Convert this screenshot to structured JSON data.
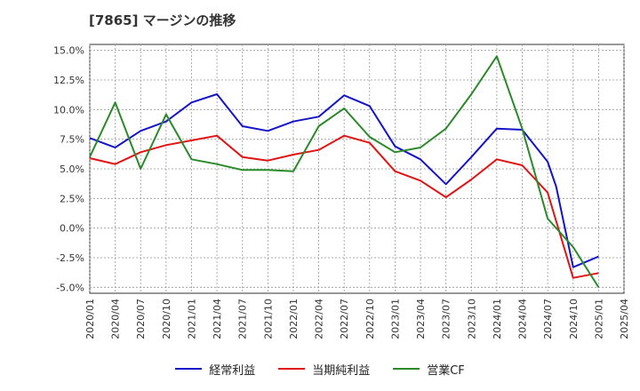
{
  "chart_data": {
    "type": "line",
    "title": "[7865]  マージンの推移",
    "x": [
      "2020/01",
      "2020/04",
      "2020/07",
      "2020/10",
      "2021/01",
      "2021/04",
      "2021/07",
      "2021/10",
      "2022/01",
      "2022/04",
      "2022/07",
      "2022/10",
      "2023/01",
      "2023/04",
      "2023/07",
      "2023/10",
      "2024/01",
      "2024/04",
      "2024/07",
      "2024/10",
      "2025/01",
      "2025/04"
    ],
    "y_ticks": [
      "15.0%",
      "12.5%",
      "10.0%",
      "7.5%",
      "5.0%",
      "2.5%",
      "0.0%",
      "-2.5%",
      "-5.0%"
    ],
    "ylim": [
      -5.5,
      15.5
    ],
    "grid": true,
    "legend_position": "bottom",
    "series": [
      {
        "name": "経常利益",
        "color": "#1414c8",
        "x": [
          "2020/01",
          "2020/04",
          "2020/07",
          "2020/10",
          "2021/01",
          "2021/04",
          "2021/07",
          "2021/10",
          "2022/01",
          "2022/04",
          "2022/07",
          "2022/10",
          "2023/01",
          "2023/04",
          "2023/07",
          "2023/10",
          "2024/01",
          "2024/04",
          "2024/07",
          "2024/10",
          "2025/01"
        ],
        "values": [
          7.6,
          6.8,
          8.2,
          9.0,
          10.6,
          11.3,
          8.6,
          8.2,
          9.0,
          9.4,
          11.2,
          10.3,
          6.9,
          5.8,
          3.7,
          6.0,
          8.4,
          8.3,
          5.6,
          -3.3,
          -2.4
        ],
        "extra_points": [
          {
            "x": "2024/08",
            "value": 3.5
          }
        ]
      },
      {
        "name": "当期純利益",
        "color": "#e01414",
        "x": [
          "2020/01",
          "2020/04",
          "2020/07",
          "2020/10",
          "2021/01",
          "2021/04",
          "2021/07",
          "2021/10",
          "2022/01",
          "2022/04",
          "2022/07",
          "2022/10",
          "2023/01",
          "2023/04",
          "2023/07",
          "2023/10",
          "2024/01",
          "2024/04",
          "2024/07",
          "2024/10",
          "2025/01"
        ],
        "values": [
          5.9,
          5.4,
          6.4,
          7.0,
          7.4,
          7.8,
          6.0,
          5.7,
          6.2,
          6.6,
          7.8,
          7.2,
          4.8,
          4.0,
          2.6,
          4.1,
          5.8,
          5.3,
          3.0,
          -4.2,
          -3.8
        ]
      },
      {
        "name": "営業CF",
        "color": "#2a8a2a",
        "x": [
          "2020/01",
          "2020/04",
          "2020/07",
          "2020/10",
          "2021/01",
          "2021/04",
          "2021/07",
          "2021/10",
          "2022/01",
          "2022/04",
          "2022/07",
          "2022/10",
          "2023/01",
          "2023/04",
          "2023/07",
          "2023/10",
          "2024/01",
          "2024/04",
          "2024/07",
          "2024/10",
          "2025/01"
        ],
        "values": [
          6.0,
          10.6,
          5.0,
          9.6,
          5.8,
          5.4,
          4.9,
          4.9,
          4.8,
          8.6,
          10.1,
          7.7,
          6.4,
          6.8,
          8.4,
          11.3,
          14.5,
          8.4,
          0.8,
          -1.6,
          -5.0
        ]
      }
    ]
  }
}
